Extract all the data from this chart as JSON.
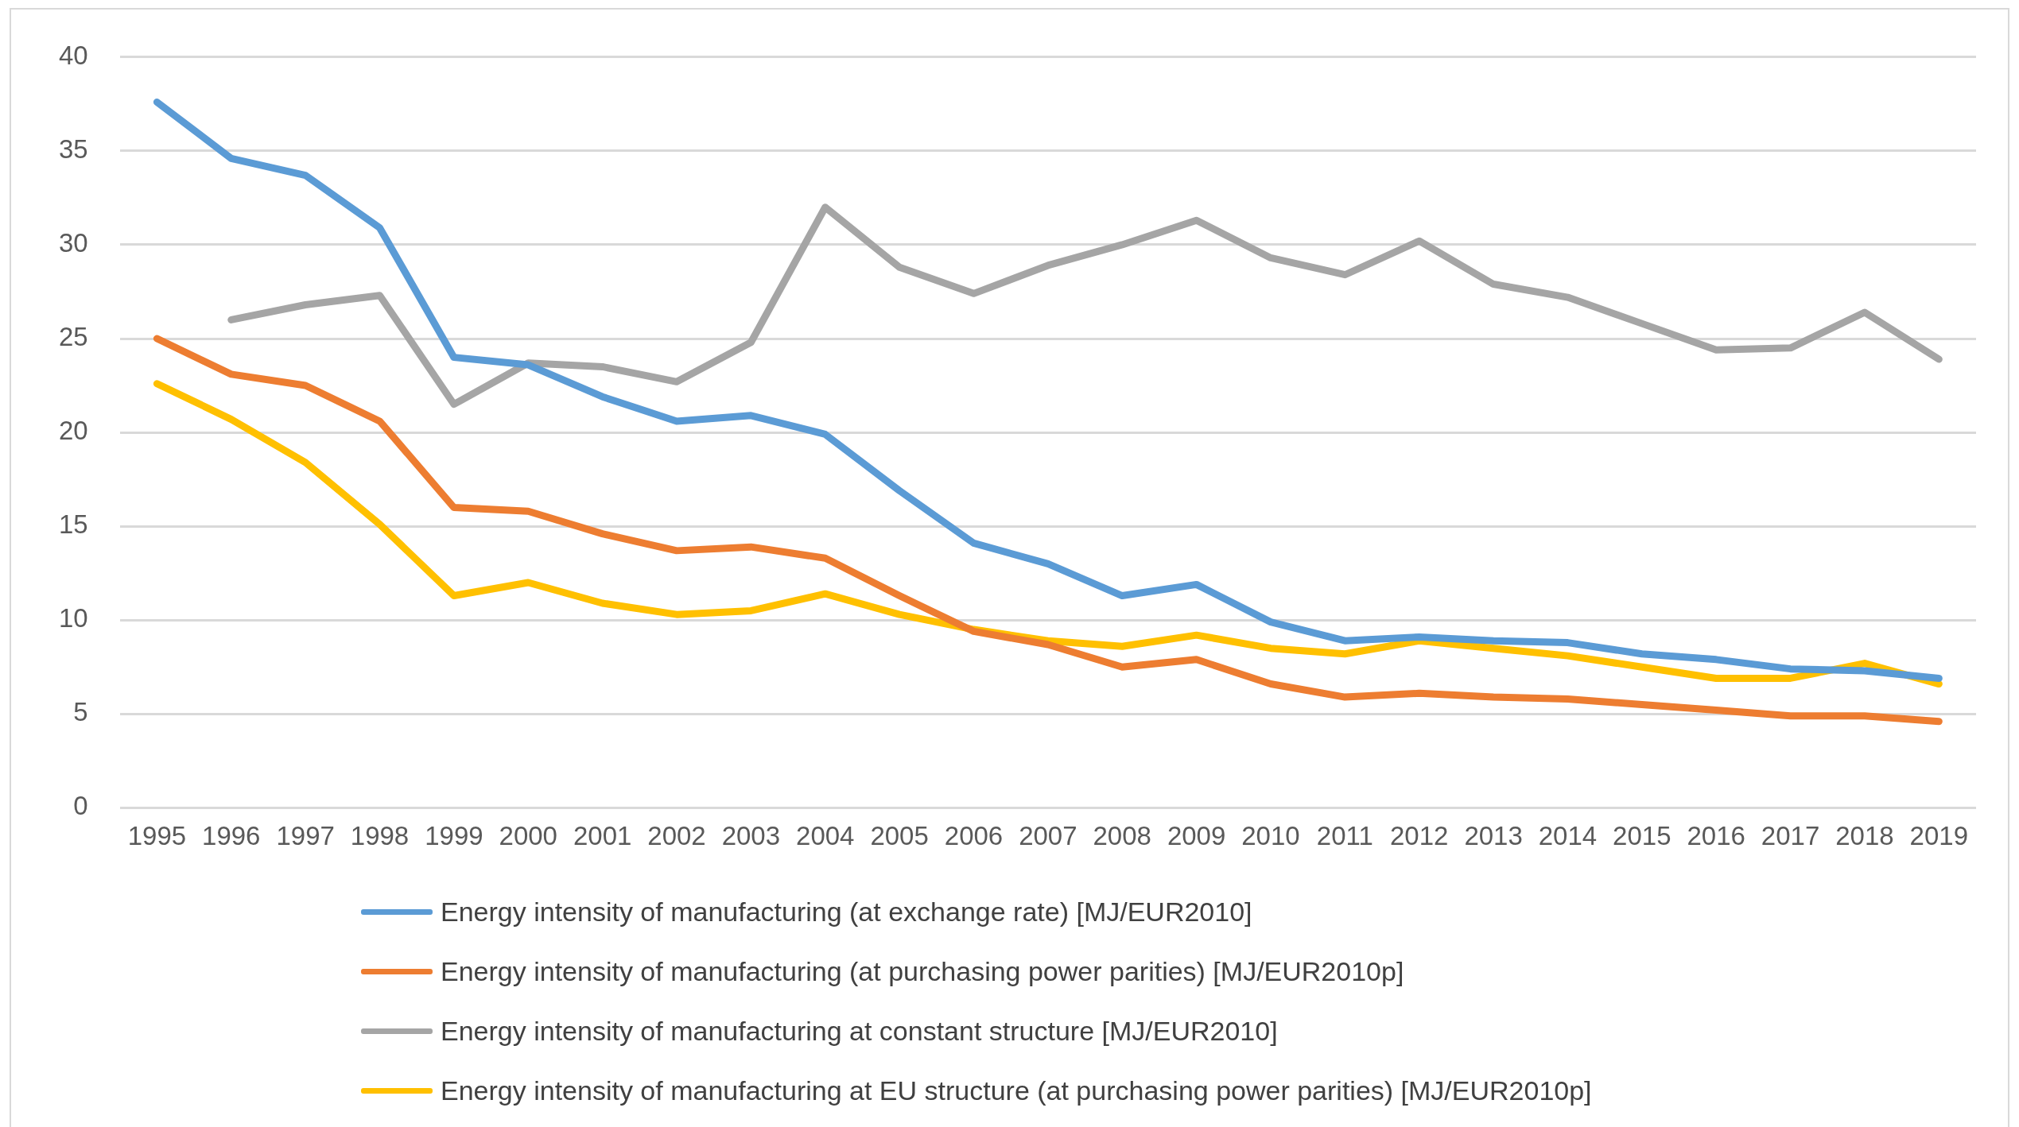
{
  "chart_data": {
    "type": "line",
    "categories": [
      "1995",
      "1996",
      "1997",
      "1998",
      "1999",
      "2000",
      "2001",
      "2002",
      "2003",
      "2004",
      "2005",
      "2006",
      "2007",
      "2008",
      "2009",
      "2010",
      "2011",
      "2012",
      "2013",
      "2014",
      "2015",
      "2016",
      "2017",
      "2018",
      "2019"
    ],
    "series": [
      {
        "name": "Energy intensity of manufacturing (at exchange rate) [MJ/EUR2010]",
        "color": "#5b9bd5",
        "values": [
          37.6,
          34.6,
          33.7,
          30.9,
          24.0,
          23.6,
          21.9,
          20.6,
          20.9,
          19.9,
          16.9,
          14.1,
          13.0,
          11.3,
          11.9,
          9.9,
          8.9,
          9.1,
          8.9,
          8.8,
          8.2,
          7.9,
          7.4,
          7.3,
          6.9
        ]
      },
      {
        "name": "Energy intensity of manufacturing (at purchasing power parities) [MJ/EUR2010p]",
        "color": "#ed7d31",
        "values": [
          25.0,
          23.1,
          22.5,
          20.6,
          16.0,
          15.8,
          14.6,
          13.7,
          13.9,
          13.3,
          11.3,
          9.4,
          8.7,
          7.5,
          7.9,
          6.6,
          5.9,
          6.1,
          5.9,
          5.8,
          5.5,
          5.2,
          4.9,
          4.9,
          4.6
        ]
      },
      {
        "name": "Energy intensity of manufacturing at constant structure [MJ/EUR2010]",
        "color": "#a5a5a5",
        "values": [
          null,
          26.0,
          26.8,
          27.3,
          21.5,
          23.7,
          23.5,
          22.7,
          24.8,
          32.0,
          28.8,
          27.4,
          28.9,
          30.0,
          31.3,
          29.3,
          28.4,
          30.2,
          27.9,
          27.2,
          25.8,
          24.4,
          24.5,
          26.4,
          23.9
        ]
      },
      {
        "name": "Energy intensity of manufacturing at EU structure (at purchasing power parities) [MJ/EUR2010p]",
        "color": "#ffc000",
        "values": [
          22.6,
          20.7,
          18.4,
          15.1,
          11.3,
          12.0,
          10.9,
          10.3,
          10.5,
          11.4,
          10.3,
          9.5,
          8.9,
          8.6,
          9.2,
          8.5,
          8.2,
          8.9,
          8.5,
          8.1,
          7.5,
          6.9,
          6.9,
          7.7,
          6.6
        ]
      }
    ],
    "ylim": [
      0,
      40
    ],
    "yticks": [
      0,
      5,
      10,
      15,
      20,
      25,
      30,
      35,
      40
    ],
    "grid": "y",
    "legend": "bottom",
    "marker": "none",
    "line_style": "solid"
  }
}
